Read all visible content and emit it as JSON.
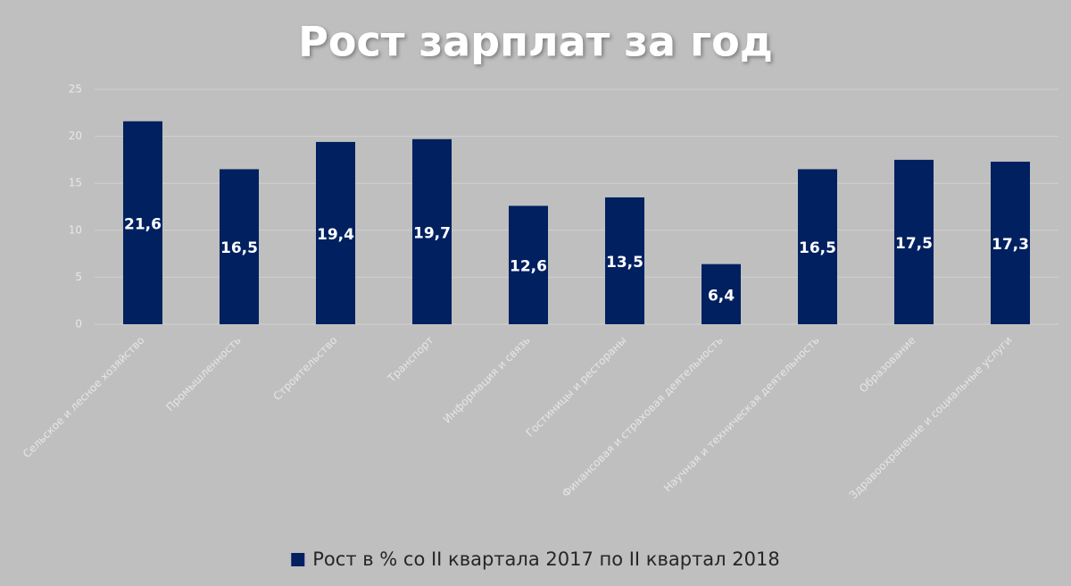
{
  "chart_data": {
    "type": "bar",
    "title": "Рост зарплат за год",
    "categories": [
      "Сельское и лесное хозяйство",
      "Промышленность",
      "Строительство",
      "Транспорт",
      "Информация и связь",
      "Гостиницы и рестораны",
      "Финансовая и страховая деятельность",
      "Научная и техническая деятельность",
      "Образование",
      "Здравоохранение и социальные услуги"
    ],
    "series": [
      {
        "name": "Рост в % со II квартала 2017 по II квартал 2018",
        "color": "#002060",
        "values": [
          21.6,
          16.5,
          19.4,
          19.7,
          12.6,
          13.5,
          6.4,
          16.5,
          17.5,
          17.3
        ],
        "value_labels": [
          "21,6",
          "16,5",
          "19,4",
          "19,7",
          "12,6",
          "13,5",
          "6,4",
          "16,5",
          "17,5",
          "17,3"
        ]
      }
    ],
    "ylim": [
      0,
      25
    ],
    "yticks": [
      0,
      5,
      10,
      15,
      20,
      25
    ],
    "grid": true,
    "legend": "bottom"
  }
}
